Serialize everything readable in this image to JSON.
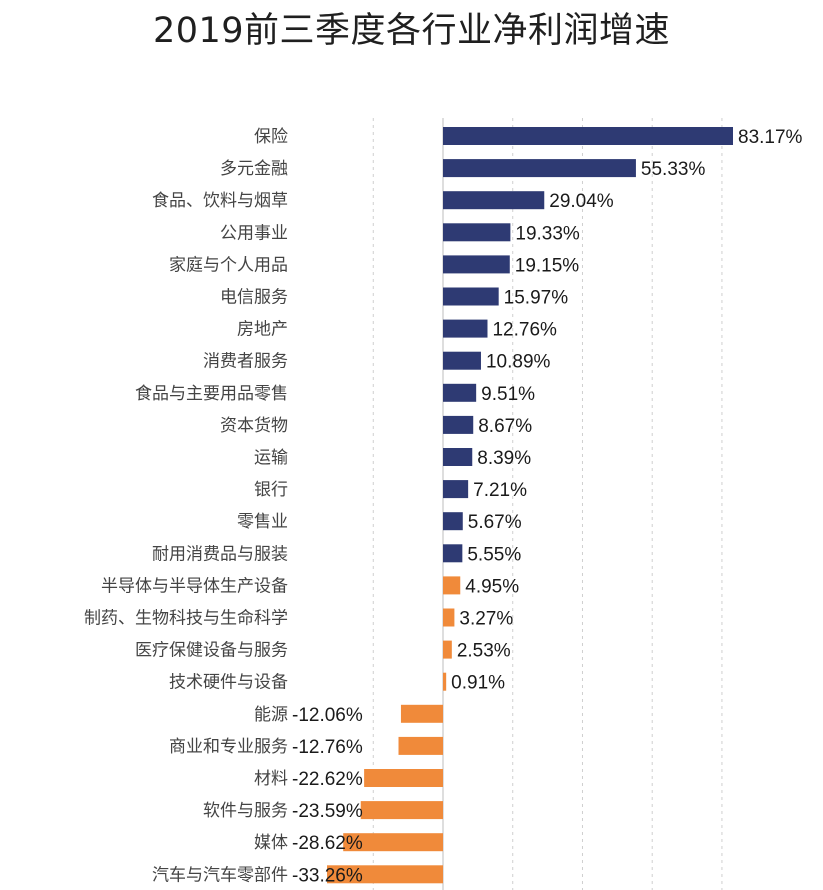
{
  "chart_data": {
    "type": "bar",
    "orientation": "horizontal",
    "title": "2019前三季度各行业净利润增速",
    "xlabel": "",
    "ylabel": "",
    "value_suffix": "%",
    "grid": true,
    "xlim": [
      -40,
      85
    ],
    "colors": {
      "positive_high": "#2e3a73",
      "positive_low": "#f08a3a",
      "negative": "#f08a3a"
    },
    "categories": [
      "保险",
      "多元金融",
      "食品、饮料与烟草",
      "公用事业",
      "家庭与个人用品",
      "电信服务",
      "房地产",
      "消费者服务",
      "食品与主要用品零售",
      "资本货物",
      "运输",
      "银行",
      "零售业",
      "耐用消费品与服装",
      "半导体与半导体生产设备",
      "制药、生物科技与生命科学",
      "医疗保健设备与服务",
      "技术硬件与设备",
      "能源",
      "商业和专业服务",
      "材料",
      "软件与服务",
      "媒体",
      "汽车与汽车零部件"
    ],
    "values": [
      83.17,
      55.33,
      29.04,
      19.33,
      19.15,
      15.97,
      12.76,
      10.89,
      9.51,
      8.67,
      8.39,
      7.21,
      5.67,
      5.55,
      4.95,
      3.27,
      2.53,
      0.91,
      -12.06,
      -12.76,
      -22.62,
      -23.59,
      -28.62,
      -33.26
    ],
    "value_labels": [
      "83.17%",
      "55.33%",
      "29.04%",
      "19.33%",
      "19.15%",
      "15.97%",
      "12.76%",
      "10.89%",
      "9.51%",
      "8.67%",
      "8.39%",
      "7.21%",
      "5.67%",
      "5.55%",
      "4.95%",
      "3.27%",
      "2.53%",
      "0.91%",
      "-12.06%",
      "-12.76%",
      "-22.62%",
      "-23.59%",
      "-28.62%",
      "-33.26%"
    ],
    "bar_color_index": [
      "dark",
      "dark",
      "dark",
      "dark",
      "dark",
      "dark",
      "dark",
      "dark",
      "dark",
      "dark",
      "dark",
      "dark",
      "dark",
      "dark",
      "orange",
      "orange",
      "orange",
      "orange",
      "orange",
      "orange",
      "orange",
      "orange",
      "orange",
      "orange"
    ]
  }
}
